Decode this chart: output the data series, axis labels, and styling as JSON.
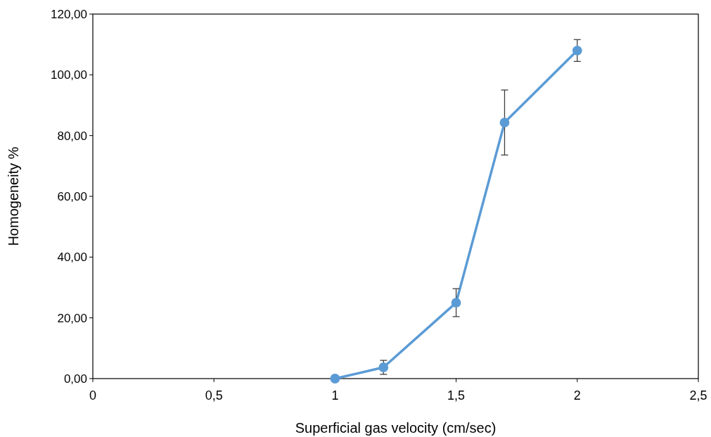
{
  "chart_data": {
    "type": "line",
    "xlabel": "Superficial gas velocity (cm/sec)",
    "ylabel": "Homogeneity %",
    "x": [
      1,
      1.2,
      1.5,
      1.7,
      2
    ],
    "series": [
      {
        "color": "#5b9bd5",
        "values": [
          0,
          3.7,
          25.0,
          84.3,
          108.0
        ],
        "errors": [
          null,
          2.3,
          4.6,
          10.7,
          3.6
        ]
      }
    ],
    "xlim": [
      0,
      2.5
    ],
    "xticks": [
      0,
      {
        "value": 0.5,
        "label": "0,5"
      },
      1,
      {
        "value": 1.5,
        "label": "1,5"
      },
      2,
      {
        "value": 2.5,
        "label": "2,5"
      }
    ],
    "ylim": [
      0,
      120
    ],
    "yticks": [
      {
        "value": 0,
        "label": "0,00"
      },
      {
        "value": 20,
        "label": "20,00"
      },
      {
        "value": 40,
        "label": "40,00"
      },
      {
        "value": 60,
        "label": "60,00"
      },
      {
        "value": 80,
        "label": "80,00"
      },
      {
        "value": 100,
        "label": "100,00"
      },
      {
        "value": 120,
        "label": "120,00"
      }
    ],
    "marker": "circle",
    "grid": false
  }
}
